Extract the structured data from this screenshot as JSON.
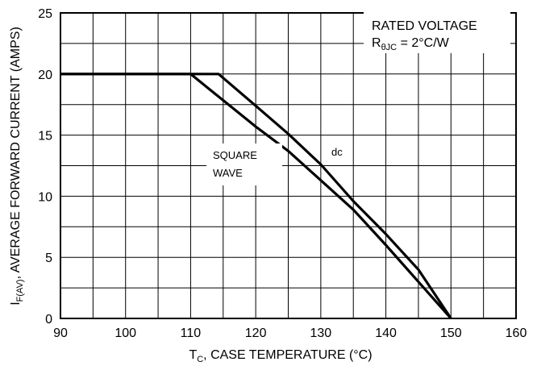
{
  "chart_data": {
    "type": "line",
    "title": "",
    "xlabel": {
      "main": "T",
      "sub": "C",
      "rest": ", CASE TEMPERATURE (°C)"
    },
    "ylabel": {
      "main": "I",
      "sub": "F(AV)",
      "rest": ", AVERAGE FORWARD CURRENT (AMPS)"
    },
    "xlim": [
      90,
      160
    ],
    "ylim": [
      0,
      25
    ],
    "x_ticks": [
      90,
      100,
      110,
      120,
      130,
      140,
      150,
      160
    ],
    "y_ticks": [
      0,
      5,
      10,
      15,
      20,
      25
    ],
    "x_minor_step": 5,
    "y_minor_step": 2.5,
    "grid": true,
    "series": [
      {
        "name": "dc",
        "points": [
          [
            90,
            20
          ],
          [
            114.3,
            20
          ],
          [
            120,
            17.4
          ],
          [
            125,
            15.1
          ],
          [
            130,
            12.6
          ],
          [
            135,
            9.6
          ],
          [
            140,
            6.9
          ],
          [
            145,
            4.0
          ],
          [
            150,
            0
          ]
        ]
      },
      {
        "name": "SQUARE WAVE",
        "points": [
          [
            90,
            20
          ],
          [
            110,
            20
          ],
          [
            120,
            15.7
          ],
          [
            125,
            13.7
          ],
          [
            130,
            11.3
          ],
          [
            135,
            8.9
          ],
          [
            140,
            6.0
          ],
          [
            145,
            3.0
          ],
          [
            150,
            0
          ]
        ]
      }
    ],
    "annotations": {
      "box_line1": "RATED VOLTAGE",
      "box_line2": {
        "main": "R",
        "sub": "θJC",
        "rest": " = 2°C/W"
      },
      "dc_label": "dc",
      "square_line1": "SQUARE",
      "square_line2": "WAVE"
    }
  }
}
